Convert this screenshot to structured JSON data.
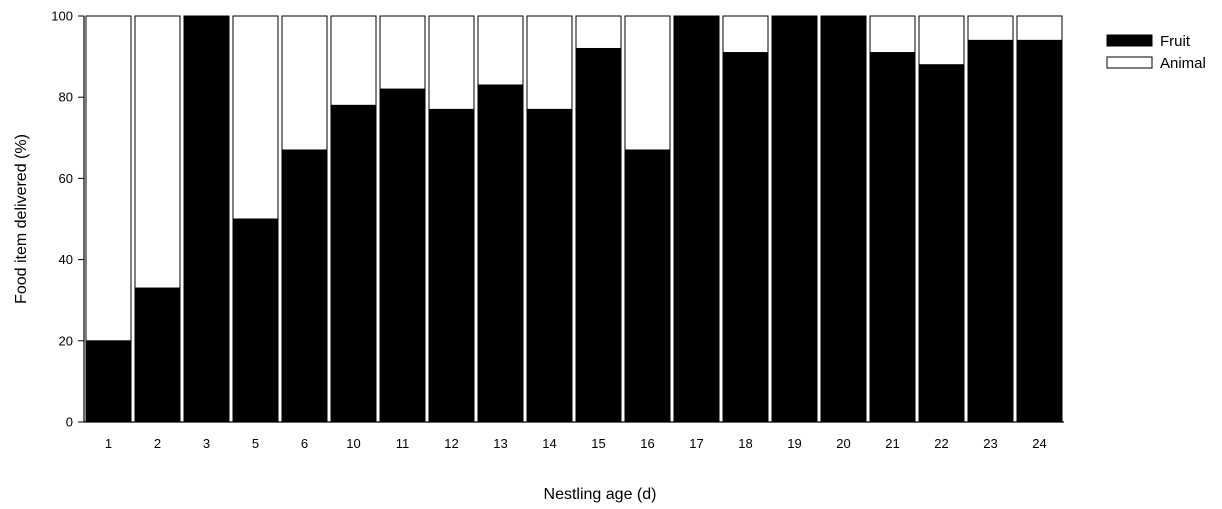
{
  "chart_data": {
    "type": "bar",
    "stacked": true,
    "title": "",
    "xlabel": "Nestling age (d)",
    "ylabel": "Food item delivered (%)",
    "ylim": [
      0,
      100
    ],
    "yticks": [
      "0",
      "20",
      "40",
      "60",
      "80",
      "100"
    ],
    "grid": false,
    "legend_position": "top-right",
    "categories": [
      "1",
      "2",
      "3",
      "5",
      "6",
      "10",
      "11",
      "12",
      "13",
      "14",
      "15",
      "16",
      "17",
      "18",
      "19",
      "20",
      "21",
      "22",
      "23",
      "24"
    ],
    "series": [
      {
        "name": "Fruit",
        "color": "#000000",
        "values": [
          20,
          33,
          100,
          50,
          67,
          78,
          82,
          77,
          83,
          77,
          92,
          67,
          100,
          91,
          100,
          100,
          91,
          88,
          94,
          94
        ]
      },
      {
        "name": "Animal",
        "color": "#ffffff",
        "values": [
          80,
          67,
          0,
          50,
          33,
          22,
          18,
          23,
          17,
          23,
          8,
          33,
          0,
          9,
          0,
          0,
          9,
          12,
          6,
          6
        ]
      }
    ]
  }
}
